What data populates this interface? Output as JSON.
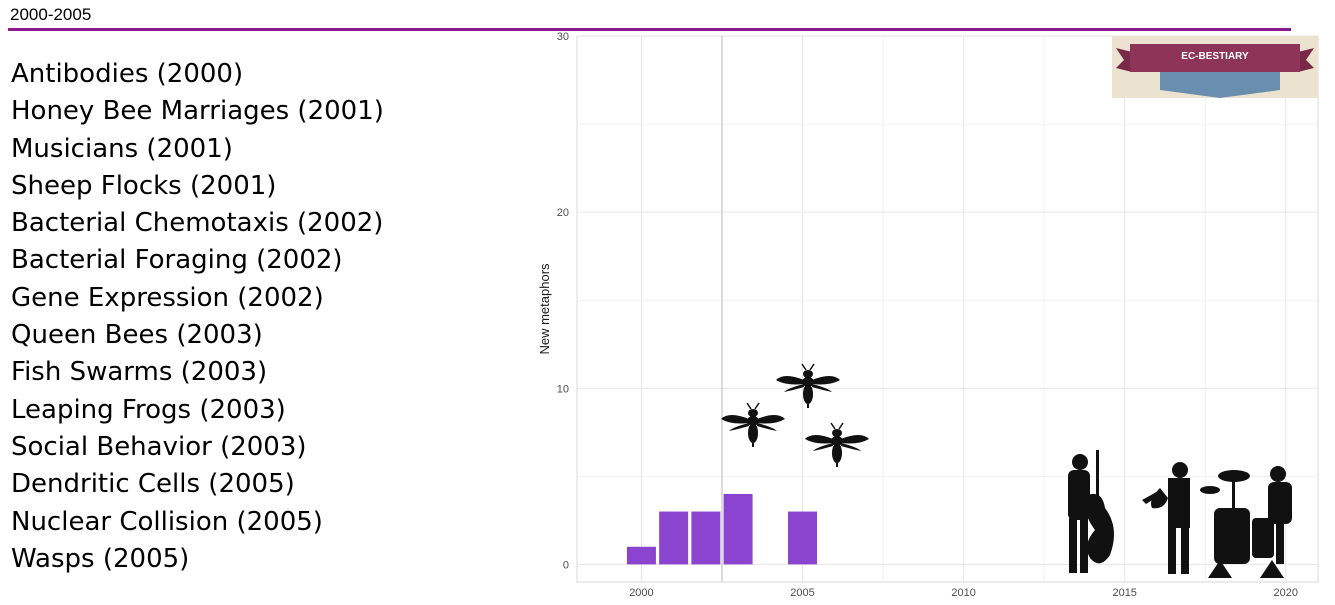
{
  "header": {
    "title": "2000-2005"
  },
  "metaphors": [
    "Antibodies (2000)",
    "Honey Bee Marriages (2001)",
    "Musicians (2001)",
    "Sheep Flocks (2001)",
    "Bacterial Chemotaxis (2002)",
    "Bacterial Foraging (2002)",
    "Gene Expression (2002)",
    "Queen Bees (2003)",
    "Fish Swarms (2003)",
    "Leaping Frogs (2003)",
    "Social Behavior (2003)",
    "Dendritic Cells (2005)",
    "Nuclear Collision (2005)",
    "Wasps (2005)"
  ],
  "logo": {
    "title": "EC-BESTIARY"
  },
  "chart_data": {
    "type": "bar",
    "x": [
      2000,
      2001,
      2002,
      2003,
      2005
    ],
    "values": [
      1,
      3,
      3,
      4,
      3
    ],
    "xlabel": "",
    "ylabel": "New metaphors",
    "xlim": [
      1998,
      2021
    ],
    "ylim": [
      -1,
      30
    ],
    "xticks": [
      2000,
      2005,
      2010,
      2015,
      2020
    ],
    "yticks": [
      0,
      10,
      20,
      30
    ],
    "bar_color": "#8a44cf",
    "grid": true,
    "vline_x": 2002.5
  },
  "colors": {
    "accent_rule": "#8b1a8f",
    "silhouette": "#111111"
  },
  "icons": [
    "wasp-icon",
    "wasp-icon",
    "wasp-icon",
    "bass-player-icon",
    "saxophonist-icon",
    "drummer-icon"
  ]
}
